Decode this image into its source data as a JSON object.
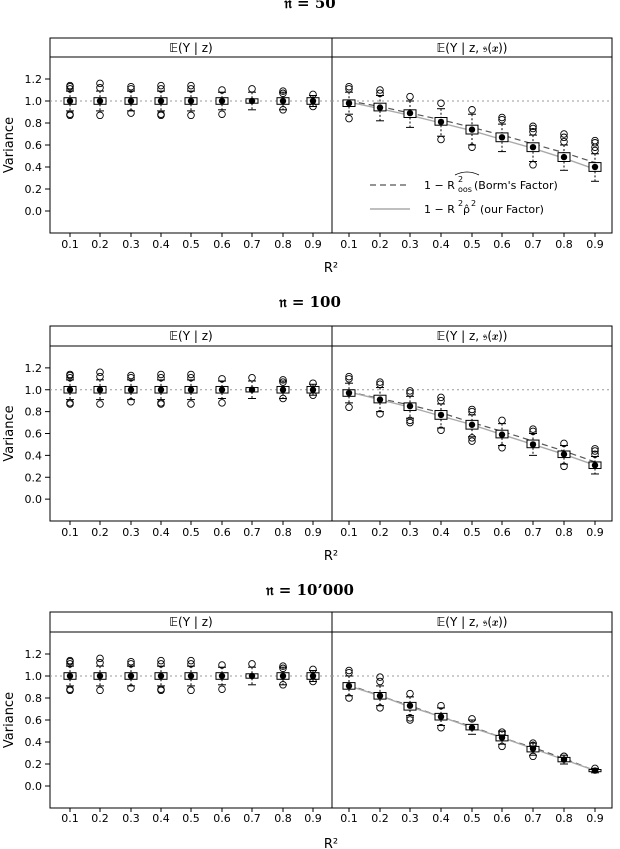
{
  "chart_data": [
    {
      "type": "box",
      "title": "𝔫 = 50",
      "xlabel": "R²",
      "ylabel": "Variance",
      "categories": [
        "0.1",
        "0.2",
        "0.3",
        "0.4",
        "0.5",
        "0.6",
        "0.7",
        "0.8",
        "0.9"
      ],
      "ylim": [
        -0.2,
        1.4
      ],
      "yticks": [
        "0.0",
        "0.2",
        "0.4",
        "0.6",
        "0.8",
        "1.0",
        "1.2"
      ],
      "reference_line": 1.0,
      "panels": [
        {
          "strip": "𝔼(Y | z)",
          "boxes": [
            {
              "q1": 0.97,
              "median": 1.0,
              "q3": 1.03,
              "lo": 0.91,
              "hi": 1.09,
              "outliers": [
                0.87,
                0.88,
                1.11,
                1.13,
                1.14
              ]
            },
            {
              "q1": 0.97,
              "median": 1.0,
              "q3": 1.03,
              "lo": 0.91,
              "hi": 1.09,
              "outliers": [
                0.87,
                1.12,
                1.16
              ]
            },
            {
              "q1": 0.97,
              "median": 1.0,
              "q3": 1.03,
              "lo": 0.91,
              "hi": 1.09,
              "outliers": [
                0.89,
                1.11,
                1.13
              ]
            },
            {
              "q1": 0.97,
              "median": 1.0,
              "q3": 1.03,
              "lo": 0.91,
              "hi": 1.09,
              "outliers": [
                0.87,
                0.88,
                1.11,
                1.14
              ]
            },
            {
              "q1": 0.97,
              "median": 1.0,
              "q3": 1.03,
              "lo": 0.91,
              "hi": 1.09,
              "outliers": [
                0.87,
                1.11,
                1.14
              ]
            },
            {
              "q1": 0.97,
              "median": 1.0,
              "q3": 1.03,
              "lo": 0.92,
              "hi": 1.08,
              "outliers": [
                0.88,
                1.1
              ]
            },
            {
              "q1": 0.98,
              "median": 1.0,
              "q3": 1.02,
              "lo": 0.92,
              "hi": 1.08,
              "outliers": [
                1.11
              ]
            },
            {
              "q1": 0.97,
              "median": 1.0,
              "q3": 1.03,
              "lo": 0.92,
              "hi": 1.08,
              "outliers": [
                0.92,
                1.07,
                1.09
              ]
            },
            {
              "q1": 0.97,
              "median": 1.0,
              "q3": 1.03,
              "lo": 0.95,
              "hi": 1.05,
              "outliers": [
                0.95,
                1.06
              ]
            }
          ]
        },
        {
          "strip": "𝔼(Y | z, 𝔰(𝒙))",
          "boxes": [
            {
              "q1": 0.95,
              "median": 0.98,
              "q3": 1.01,
              "lo": 0.88,
              "hi": 1.08,
              "outliers": [
                0.84,
                1.11,
                1.13
              ]
            },
            {
              "q1": 0.91,
              "median": 0.94,
              "q3": 0.98,
              "lo": 0.82,
              "hi": 1.05,
              "outliers": [
                1.07,
                1.1
              ]
            },
            {
              "q1": 0.85,
              "median": 0.89,
              "q3": 0.92,
              "lo": 0.76,
              "hi": 1.0,
              "outliers": [
                1.04
              ]
            },
            {
              "q1": 0.78,
              "median": 0.81,
              "q3": 0.85,
              "lo": 0.68,
              "hi": 0.93,
              "outliers": [
                0.65,
                0.98
              ]
            },
            {
              "q1": 0.7,
              "median": 0.74,
              "q3": 0.78,
              "lo": 0.6,
              "hi": 0.88,
              "outliers": [
                0.58,
                0.92
              ]
            },
            {
              "q1": 0.63,
              "median": 0.67,
              "q3": 0.71,
              "lo": 0.54,
              "hi": 0.79,
              "outliers": [
                0.83,
                0.85
              ]
            },
            {
              "q1": 0.54,
              "median": 0.58,
              "q3": 0.62,
              "lo": 0.45,
              "hi": 0.69,
              "outliers": [
                0.42,
                0.72,
                0.75,
                0.77
              ]
            },
            {
              "q1": 0.45,
              "median": 0.49,
              "q3": 0.53,
              "lo": 0.37,
              "hi": 0.6,
              "outliers": [
                0.63,
                0.67,
                0.7
              ]
            },
            {
              "q1": 0.36,
              "median": 0.4,
              "q3": 0.44,
              "lo": 0.27,
              "hi": 0.52,
              "outliers": [
                0.55,
                0.58,
                0.62,
                0.64
              ]
            }
          ],
          "dashed_line": [
            1.0,
            0.95,
            0.89,
            0.83,
            0.76,
            0.69,
            0.61,
            0.53,
            0.44
          ],
          "solid_line": [
            0.99,
            0.93,
            0.87,
            0.8,
            0.73,
            0.65,
            0.57,
            0.48,
            0.38
          ]
        }
      ],
      "legend": {
        "position": "bottom-right",
        "entries": [
          {
            "style": "dashed",
            "label": "(Borm's Factor)"
          },
          {
            "style": "solid",
            "label": "(our Factor)"
          }
        ]
      }
    },
    {
      "type": "box",
      "title": "𝔫 = 100",
      "xlabel": "R²",
      "ylabel": "Variance",
      "categories": [
        "0.1",
        "0.2",
        "0.3",
        "0.4",
        "0.5",
        "0.6",
        "0.7",
        "0.8",
        "0.9"
      ],
      "ylim": [
        -0.2,
        1.4
      ],
      "yticks": [
        "0.0",
        "0.2",
        "0.4",
        "0.6",
        "0.8",
        "1.0",
        "1.2"
      ],
      "reference_line": 1.0,
      "panels": [
        {
          "strip": "𝔼(Y | z)",
          "boxes": [
            {
              "q1": 0.97,
              "median": 1.0,
              "q3": 1.03,
              "lo": 0.91,
              "hi": 1.09,
              "outliers": [
                0.87,
                0.88,
                1.11,
                1.13,
                1.14
              ]
            },
            {
              "q1": 0.97,
              "median": 1.0,
              "q3": 1.03,
              "lo": 0.91,
              "hi": 1.09,
              "outliers": [
                0.87,
                1.12,
                1.16
              ]
            },
            {
              "q1": 0.97,
              "median": 1.0,
              "q3": 1.03,
              "lo": 0.91,
              "hi": 1.09,
              "outliers": [
                0.89,
                1.11,
                1.13
              ]
            },
            {
              "q1": 0.97,
              "median": 1.0,
              "q3": 1.03,
              "lo": 0.91,
              "hi": 1.09,
              "outliers": [
                0.87,
                0.88,
                1.11,
                1.14
              ]
            },
            {
              "q1": 0.97,
              "median": 1.0,
              "q3": 1.03,
              "lo": 0.91,
              "hi": 1.09,
              "outliers": [
                0.87,
                1.11,
                1.14
              ]
            },
            {
              "q1": 0.97,
              "median": 1.0,
              "q3": 1.03,
              "lo": 0.92,
              "hi": 1.08,
              "outliers": [
                0.88,
                1.1
              ]
            },
            {
              "q1": 0.98,
              "median": 1.0,
              "q3": 1.02,
              "lo": 0.92,
              "hi": 1.08,
              "outliers": [
                1.11
              ]
            },
            {
              "q1": 0.97,
              "median": 1.0,
              "q3": 1.03,
              "lo": 0.92,
              "hi": 1.08,
              "outliers": [
                0.92,
                1.07,
                1.09
              ]
            },
            {
              "q1": 0.97,
              "median": 1.0,
              "q3": 1.03,
              "lo": 0.95,
              "hi": 1.05,
              "outliers": [
                0.95,
                1.06
              ]
            }
          ]
        },
        {
          "strip": "𝔼(Y | z, 𝔰(𝒙))",
          "boxes": [
            {
              "q1": 0.94,
              "median": 0.97,
              "q3": 1.0,
              "lo": 0.88,
              "hi": 1.06,
              "outliers": [
                0.84,
                1.1,
                1.12
              ]
            },
            {
              "q1": 0.88,
              "median": 0.91,
              "q3": 0.95,
              "lo": 0.8,
              "hi": 1.02,
              "outliers": [
                0.78,
                1.05,
                1.07
              ]
            },
            {
              "q1": 0.81,
              "median": 0.85,
              "q3": 0.88,
              "lo": 0.74,
              "hi": 0.94,
              "outliers": [
                0.7,
                0.72,
                0.97,
                0.99
              ]
            },
            {
              "q1": 0.73,
              "median": 0.77,
              "q3": 0.81,
              "lo": 0.65,
              "hi": 0.87,
              "outliers": [
                0.63,
                0.9,
                0.93
              ]
            },
            {
              "q1": 0.64,
              "median": 0.68,
              "q3": 0.72,
              "lo": 0.57,
              "hi": 0.77,
              "outliers": [
                0.53,
                0.56,
                0.8,
                0.82
              ]
            },
            {
              "q1": 0.56,
              "median": 0.59,
              "q3": 0.63,
              "lo": 0.49,
              "hi": 0.69,
              "outliers": [
                0.47,
                0.72
              ]
            },
            {
              "q1": 0.47,
              "median": 0.5,
              "q3": 0.54,
              "lo": 0.4,
              "hi": 0.6,
              "outliers": [
                0.62,
                0.64
              ]
            },
            {
              "q1": 0.38,
              "median": 0.41,
              "q3": 0.44,
              "lo": 0.32,
              "hi": 0.49,
              "outliers": [
                0.3,
                0.51
              ]
            },
            {
              "q1": 0.28,
              "median": 0.31,
              "q3": 0.34,
              "lo": 0.23,
              "hi": 0.39,
              "outliers": [
                0.41,
                0.44,
                0.46
              ]
            }
          ],
          "dashed_line": [
            0.98,
            0.92,
            0.86,
            0.79,
            0.7,
            0.62,
            0.53,
            0.44,
            0.34
          ],
          "solid_line": [
            0.98,
            0.91,
            0.84,
            0.76,
            0.68,
            0.59,
            0.5,
            0.41,
            0.31
          ]
        }
      ]
    },
    {
      "type": "box",
      "title": "𝔫 = 10’000",
      "xlabel": "R²",
      "ylabel": "Variance",
      "categories": [
        "0.1",
        "0.2",
        "0.3",
        "0.4",
        "0.5",
        "0.6",
        "0.7",
        "0.8",
        "0.9"
      ],
      "ylim": [
        -0.2,
        1.4
      ],
      "yticks": [
        "0.0",
        "0.2",
        "0.4",
        "0.6",
        "0.8",
        "1.0",
        "1.2"
      ],
      "reference_line": 1.0,
      "panels": [
        {
          "strip": "𝔼(Y | z)",
          "boxes": [
            {
              "q1": 0.97,
              "median": 1.0,
              "q3": 1.03,
              "lo": 0.91,
              "hi": 1.09,
              "outliers": [
                0.87,
                0.88,
                1.11,
                1.13,
                1.14
              ]
            },
            {
              "q1": 0.97,
              "median": 1.0,
              "q3": 1.03,
              "lo": 0.91,
              "hi": 1.09,
              "outliers": [
                0.87,
                1.12,
                1.16
              ]
            },
            {
              "q1": 0.97,
              "median": 1.0,
              "q3": 1.03,
              "lo": 0.91,
              "hi": 1.09,
              "outliers": [
                0.89,
                1.11,
                1.13
              ]
            },
            {
              "q1": 0.97,
              "median": 1.0,
              "q3": 1.03,
              "lo": 0.91,
              "hi": 1.09,
              "outliers": [
                0.87,
                0.88,
                1.11,
                1.14
              ]
            },
            {
              "q1": 0.97,
              "median": 1.0,
              "q3": 1.03,
              "lo": 0.91,
              "hi": 1.09,
              "outliers": [
                0.87,
                1.11,
                1.14
              ]
            },
            {
              "q1": 0.97,
              "median": 1.0,
              "q3": 1.03,
              "lo": 0.92,
              "hi": 1.08,
              "outliers": [
                0.88,
                1.1
              ]
            },
            {
              "q1": 0.98,
              "median": 1.0,
              "q3": 1.02,
              "lo": 0.92,
              "hi": 1.08,
              "outliers": [
                1.11
              ]
            },
            {
              "q1": 0.97,
              "median": 1.0,
              "q3": 1.03,
              "lo": 0.92,
              "hi": 1.08,
              "outliers": [
                0.92,
                1.07,
                1.09
              ]
            },
            {
              "q1": 0.97,
              "median": 1.0,
              "q3": 1.03,
              "lo": 0.95,
              "hi": 1.05,
              "outliers": [
                0.95,
                1.06
              ]
            }
          ]
        },
        {
          "strip": "𝔼(Y | z, 𝔰(𝒙))",
          "boxes": [
            {
              "q1": 0.88,
              "median": 0.91,
              "q3": 0.94,
              "lo": 0.82,
              "hi": 1.0,
              "outliers": [
                0.8,
                1.03,
                1.05
              ]
            },
            {
              "q1": 0.79,
              "median": 0.82,
              "q3": 0.85,
              "lo": 0.73,
              "hi": 0.91,
              "outliers": [
                0.71,
                0.95,
                0.99
              ]
            },
            {
              "q1": 0.69,
              "median": 0.73,
              "q3": 0.76,
              "lo": 0.64,
              "hi": 0.81,
              "outliers": [
                0.6,
                0.62,
                0.84
              ]
            },
            {
              "q1": 0.6,
              "median": 0.63,
              "q3": 0.66,
              "lo": 0.55,
              "hi": 0.71,
              "outliers": [
                0.53,
                0.73
              ]
            },
            {
              "q1": 0.51,
              "median": 0.53,
              "q3": 0.56,
              "lo": 0.47,
              "hi": 0.6,
              "outliers": [
                0.61
              ]
            },
            {
              "q1": 0.41,
              "median": 0.44,
              "q3": 0.46,
              "lo": 0.38,
              "hi": 0.5,
              "outliers": [
                0.36,
                0.47,
                0.49
              ]
            },
            {
              "q1": 0.31,
              "median": 0.34,
              "q3": 0.36,
              "lo": 0.28,
              "hi": 0.39,
              "outliers": [
                0.27,
                0.37,
                0.39
              ]
            },
            {
              "q1": 0.22,
              "median": 0.24,
              "q3": 0.26,
              "lo": 0.2,
              "hi": 0.28,
              "outliers": [
                0.27
              ]
            },
            {
              "q1": 0.13,
              "median": 0.14,
              "q3": 0.15,
              "lo": 0.12,
              "hi": 0.16,
              "outliers": [
                0.16
              ]
            }
          ],
          "dashed_line": [
            0.92,
            0.82,
            0.73,
            0.63,
            0.54,
            0.44,
            0.35,
            0.25,
            0.14
          ],
          "solid_line": [
            0.91,
            0.82,
            0.72,
            0.63,
            0.53,
            0.44,
            0.34,
            0.24,
            0.14
          ]
        }
      ]
    }
  ]
}
